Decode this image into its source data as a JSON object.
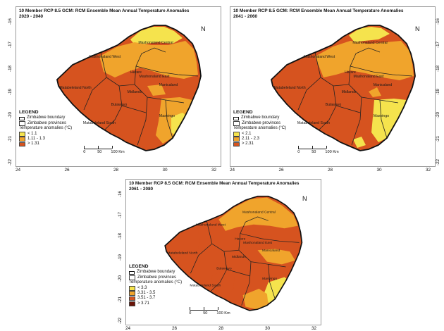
{
  "panels": [
    {
      "title_line1": "10 Member RCP 8.5 GCM: RCM Ensemble Mean Annual Temperature Anomalies",
      "title_line2": "2020 - 2040",
      "legend": {
        "heading": "LEGEND",
        "boundary": "Zimbabwe boundary",
        "provinces": "Zimbabwe provinces",
        "anomalies_label": "Temperature anomalies (°C)",
        "classes": [
          {
            "label": "< 1.1",
            "color": "#f5e34d"
          },
          {
            "label": "1.11 - 1.3",
            "color": "#f0a42c"
          },
          {
            "label": "> 1.31",
            "color": "#d6531f"
          }
        ]
      },
      "base_color": "#d6531f",
      "province_labels": [
        "Mashonaland Central",
        "Mashonaland West",
        "Mashonaland East",
        "Harare",
        "Matabeleland North",
        "Midlands",
        "Manicaland",
        "Bulawayo",
        "Matabeleland South",
        "Masvingo"
      ],
      "x_ticks": [
        "24",
        "26",
        "28",
        "30",
        "32"
      ],
      "y_ticks": [
        "-16",
        "-17",
        "-18",
        "-19",
        "-20",
        "-21",
        "-22"
      ],
      "scale": {
        "labels": [
          "0",
          "50",
          "100 Km"
        ]
      }
    },
    {
      "title_line1": "10 Member RCP 8.5 GCM: RCM Ensemble Mean Annual Temperature Anomalies",
      "title_line2": "2041 - 2060",
      "legend": {
        "heading": "LEGEND",
        "boundary": "Zimbabwe boundary",
        "provinces": "Zimbabwe provinces",
        "anomalies_label": "Temperature anomalies (°C)",
        "classes": [
          {
            "label": "< 2.1",
            "color": "#f5e34d"
          },
          {
            "label": "2.11 - 2.3",
            "color": "#f0a42c"
          },
          {
            "label": "> 2.31",
            "color": "#d6531f"
          }
        ]
      },
      "base_color": "#d6531f",
      "province_labels": [
        "Mashonaland Central",
        "Mashonaland West",
        "Mashonaland East",
        "Harare",
        "Matabeleland North",
        "Midlands",
        "Manicaland",
        "Bulawayo",
        "Matabeleland South",
        "Masvingo"
      ],
      "x_ticks": [
        "24",
        "26",
        "28",
        "30",
        "32"
      ],
      "y_ticks": [
        "-16",
        "-17",
        "-18",
        "-19",
        "-20",
        "-21",
        "-22"
      ],
      "scale": {
        "labels": [
          "0",
          "50",
          "100 Km"
        ]
      }
    },
    {
      "title_line1": "10 Member RCP 8.5 GCM: RCM Ensemble Mean Annual Temperature Anomalies",
      "title_line2": "2061 - 2080",
      "legend": {
        "heading": "LEGEND",
        "boundary": "Zimbabwe boundary",
        "provinces": "Zimbabwe provinces",
        "anomalies_label": "Temperature anomalies (°C)",
        "classes": [
          {
            "label": "< 3.3",
            "color": "#f5e34d"
          },
          {
            "label": "3.31 - 3.5",
            "color": "#f0a42c"
          },
          {
            "label": "3.51 - 3.7",
            "color": "#d6531f"
          },
          {
            "label": "> 3.71",
            "color": "#6b1408"
          }
        ]
      },
      "base_color": "#d6531f",
      "province_labels": [
        "Mashonaland Central",
        "Mashonaland West",
        "Mashonaland East",
        "Harare",
        "Matabeleland North",
        "Midlands",
        "Manicaland",
        "Bulawayo",
        "Matabeleland South",
        "Masvingo"
      ],
      "x_ticks": [
        "24",
        "26",
        "28",
        "30",
        "32"
      ],
      "y_ticks": [
        "-16",
        "-17",
        "-18",
        "-19",
        "-20",
        "-21",
        "-22"
      ],
      "scale": {
        "labels": [
          "0",
          "50",
          "100 Km"
        ]
      }
    }
  ],
  "north_symbol": "N"
}
